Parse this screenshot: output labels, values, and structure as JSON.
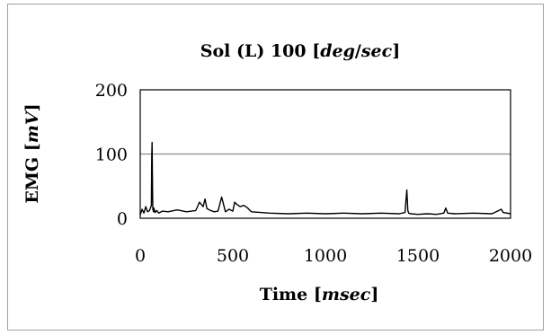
{
  "chart_data": {
    "type": "line",
    "title": {
      "prefix": "Sol (L) 100 [",
      "emph1": "deg",
      "sep": "/",
      "emph2": "sec",
      "suffix": "]"
    },
    "xlabel": {
      "prefix": "Time [",
      "emph": "msec",
      "suffix": "]"
    },
    "ylabel": {
      "prefix": "EMG [",
      "emph": "mV",
      "suffix": "]"
    },
    "xlim": [
      0,
      2000
    ],
    "ylim": [
      0,
      200
    ],
    "x_ticks": [
      "0",
      "500",
      "1000",
      "1500",
      "2000"
    ],
    "y_ticks": [
      "0",
      "100",
      "200"
    ],
    "grid": "horizontal",
    "legend": "none",
    "series": [
      {
        "color": "#000000",
        "x": [
          0,
          10,
          20,
          30,
          40,
          50,
          60,
          62,
          64,
          66,
          68,
          70,
          72,
          74,
          80,
          90,
          100,
          120,
          150,
          200,
          250,
          300,
          320,
          340,
          350,
          360,
          380,
          400,
          420,
          440,
          460,
          480,
          500,
          510,
          520,
          540,
          560,
          580,
          600,
          650,
          700,
          800,
          900,
          1000,
          1100,
          1200,
          1300,
          1400,
          1430,
          1440,
          1445,
          1450,
          1460,
          1500,
          1550,
          1600,
          1640,
          1650,
          1660,
          1700,
          1800,
          1900,
          1950,
          1960,
          2000
        ],
        "y": [
          5,
          14,
          8,
          18,
          10,
          12,
          20,
          95,
          118,
          60,
          15,
          12,
          10,
          16,
          9,
          12,
          8,
          11,
          10,
          13,
          10,
          12,
          25,
          18,
          30,
          15,
          12,
          10,
          11,
          33,
          10,
          14,
          11,
          25,
          22,
          18,
          20,
          16,
          10,
          9,
          8,
          7,
          8,
          7,
          8,
          7,
          8,
          7,
          9,
          44,
          12,
          8,
          7,
          6,
          7,
          6,
          8,
          16,
          8,
          7,
          8,
          7,
          14,
          9,
          7
        ]
      }
    ]
  }
}
